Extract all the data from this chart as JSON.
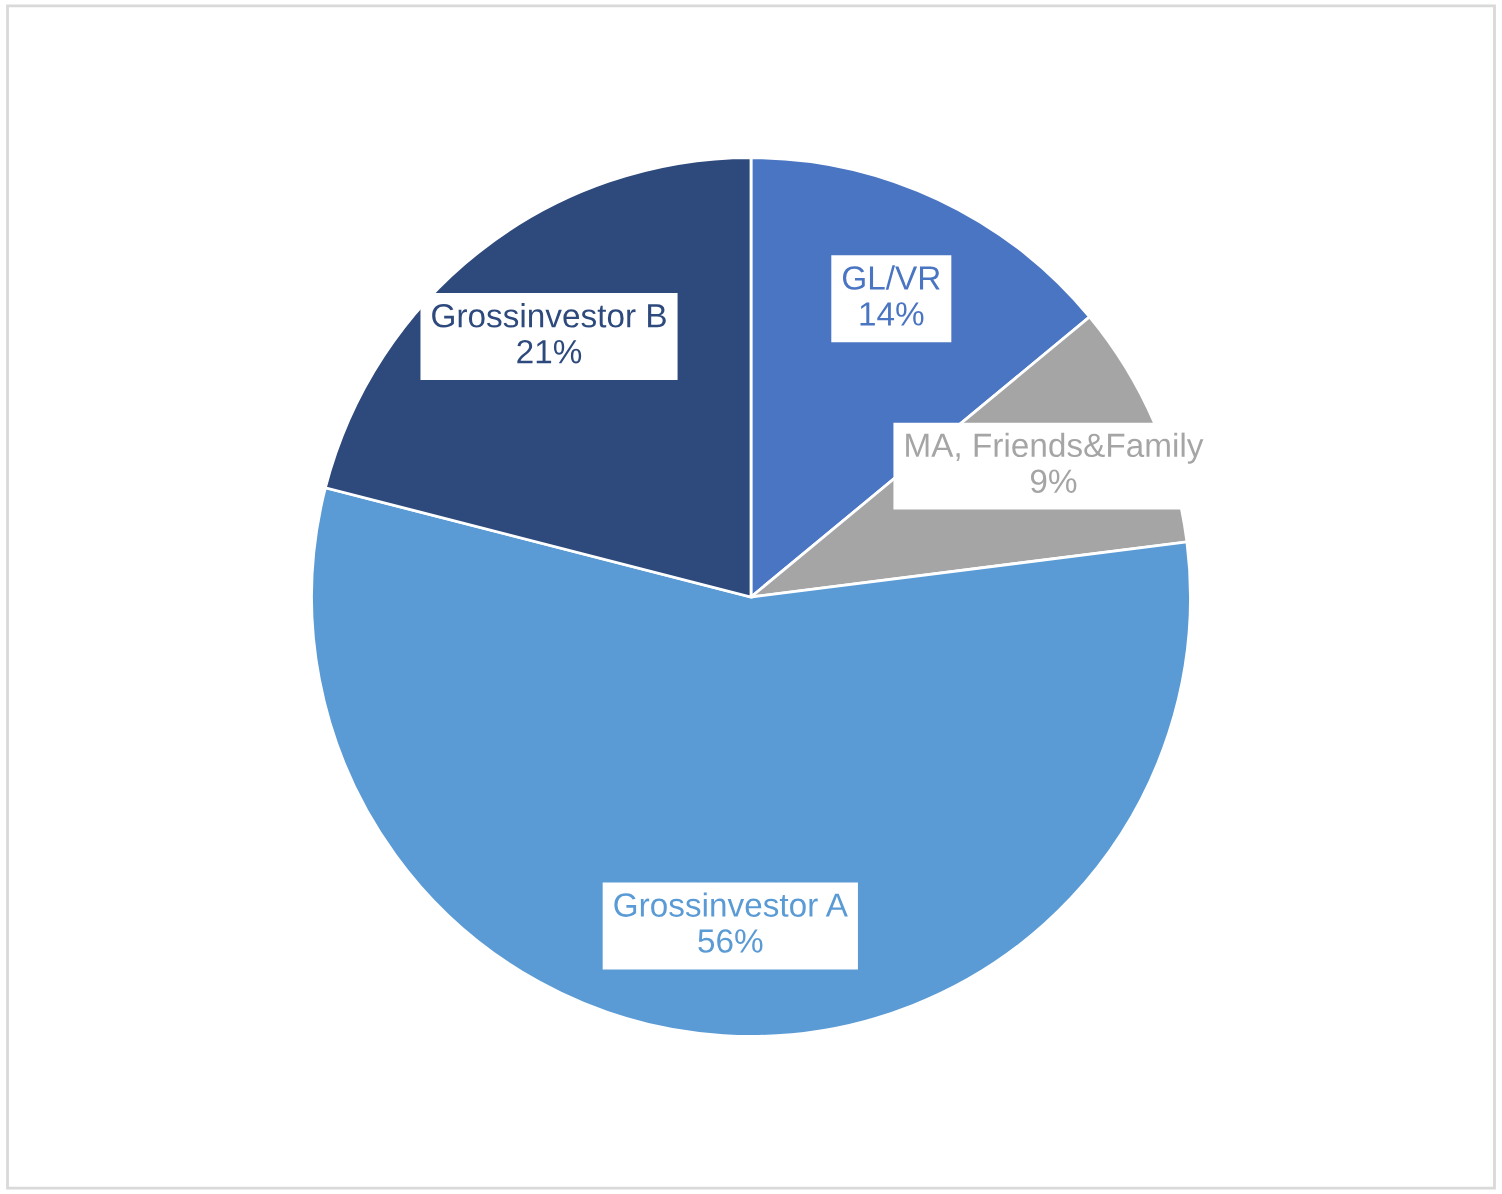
{
  "chart_data": {
    "type": "pie",
    "categories": [
      "GL/VR",
      "MA, Friends&Family",
      "Grossinvestor A",
      "Grossinvestor B"
    ],
    "values": [
      14,
      9,
      56,
      21
    ],
    "value_labels": [
      "14%",
      "9%",
      "56%",
      "21%"
    ],
    "colors": [
      "#4a75c2",
      "#a5a5a5",
      "#5b9bd5",
      "#2e4a7d"
    ]
  }
}
